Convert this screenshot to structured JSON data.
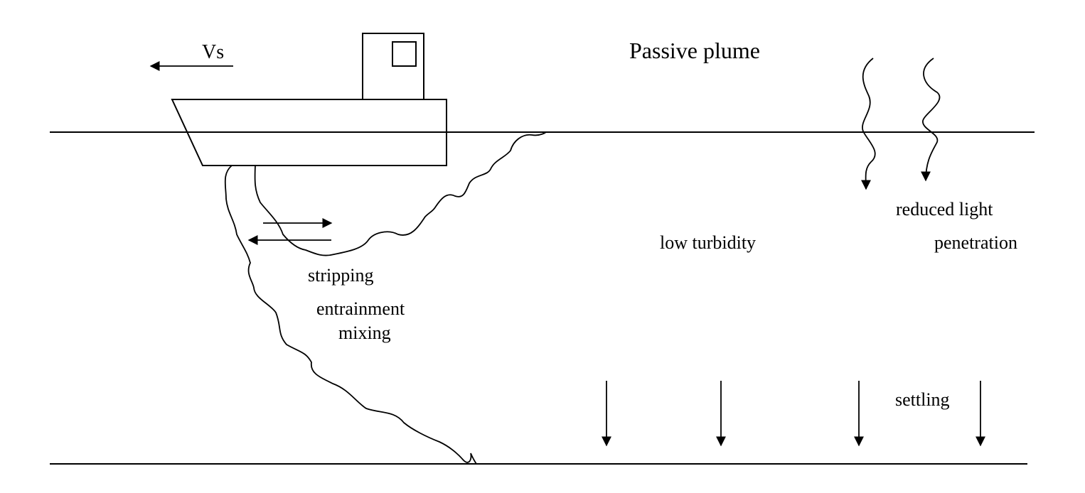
{
  "title": "Passive plume",
  "labels": {
    "vessel_speed": "Vs",
    "stripping": "stripping",
    "entrainment": "entrainment",
    "mixing": "mixing",
    "low_turbidity": "low turbidity",
    "reduced_light": "reduced light",
    "penetration": "penetration",
    "settling": "settling"
  },
  "colors": {
    "ink": "#000000",
    "background": "#ffffff"
  }
}
